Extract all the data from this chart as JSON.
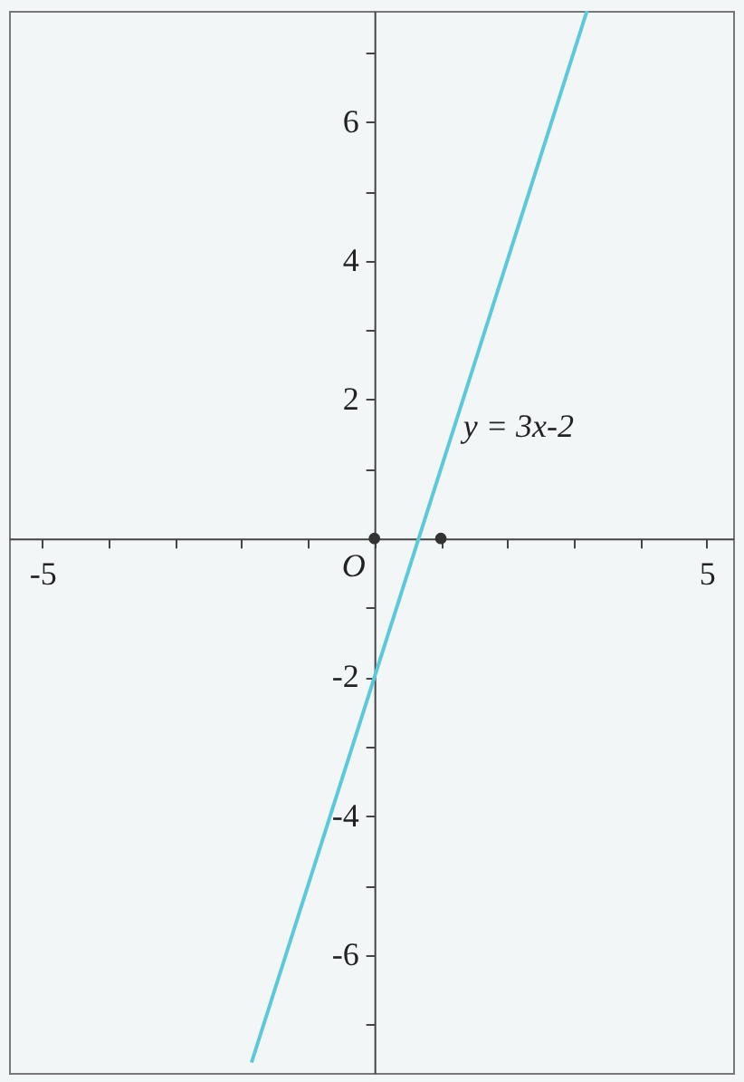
{
  "chart_data": {
    "type": "line",
    "xlim": [
      -5.5,
      5.4
    ],
    "ylim": [
      -7.7,
      7.6
    ],
    "xticks": [
      -5,
      {
        "value": -4,
        "label": null
      },
      {
        "value": -3,
        "label": null
      },
      {
        "value": -2,
        "label": null
      },
      {
        "value": -1,
        "label": null
      },
      {
        "value": 0,
        "label": null
      },
      {
        "value": 1,
        "label": null
      },
      {
        "value": 2,
        "label": null
      },
      {
        "value": 3,
        "label": null
      },
      {
        "value": 4,
        "label": null
      },
      5
    ],
    "yticks": [
      -6,
      {
        "value": -7,
        "label": null
      },
      {
        "value": -5,
        "label": null
      },
      -4,
      {
        "value": -3,
        "label": null
      },
      -2,
      {
        "value": -1,
        "label": null
      },
      {
        "value": 1,
        "label": null
      },
      2,
      {
        "value": 3,
        "label": null
      },
      4,
      {
        "value": 5,
        "label": null
      },
      6,
      {
        "value": 7,
        "label": null
      }
    ],
    "annotations": [
      "O",
      {
        "text": "y = 3x-2",
        "x": 1.2,
        "y": 1.6
      }
    ],
    "series": [
      {
        "type": "line",
        "color": "#5bc8dc",
        "x": [
          -1.85,
          3.2
        ],
        "values": [
          -7.55,
          7.6
        ],
        "marker": "none"
      },
      {
        "type": "scatter",
        "color": "#333333",
        "x": [
          0,
          1
        ],
        "values": [
          0,
          0
        ],
        "marker": "circle"
      }
    ]
  }
}
